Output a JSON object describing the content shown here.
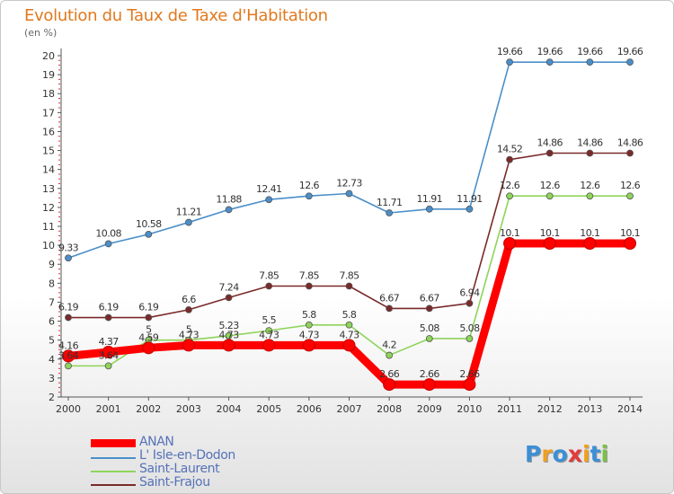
{
  "header": {
    "title": "Evolution du Taux de Taxe d'Habitation",
    "unit": "(en %)"
  },
  "chart_data": {
    "type": "line",
    "title": "Evolution du Taux de Taxe d'Habitation",
    "ylabel": "(en %)",
    "xlabel": "",
    "x": [
      "2000",
      "2001",
      "2002",
      "2003",
      "2004",
      "2005",
      "2006",
      "2007",
      "2008",
      "2009",
      "2010",
      "2011",
      "2012",
      "2013",
      "2014"
    ],
    "ylim": [
      2,
      20
    ],
    "yticks": [
      "2",
      "3",
      "4",
      "5",
      "6",
      "7",
      "8",
      "9",
      "10",
      "11",
      "12",
      "13",
      "14",
      "15",
      "16",
      "17",
      "18",
      "19",
      "20"
    ],
    "grid": false,
    "legend_position": "bottom-left",
    "series": [
      {
        "name": "ANAN",
        "color": "#ff0000",
        "values": [
          4.16,
          4.37,
          4.59,
          4.73,
          4.73,
          4.73,
          4.73,
          4.73,
          2.66,
          2.66,
          2.66,
          10.1,
          10.1,
          10.1,
          10.1
        ],
        "labels": [
          "4.16",
          "4.37",
          "4.59",
          "4.73",
          "4.73",
          "4.73",
          "4.73",
          "4.73",
          "2.66",
          "2.66",
          "2.66",
          "10.1",
          "10.1",
          "10.1",
          "10.1"
        ]
      },
      {
        "name": "L' Isle-en-Dodon",
        "color": "#4a8fc9",
        "values": [
          9.33,
          10.08,
          10.58,
          11.21,
          11.88,
          12.41,
          12.6,
          12.73,
          11.71,
          11.91,
          11.91,
          19.66,
          19.66,
          19.66,
          19.66
        ],
        "labels": [
          "9.33",
          "10.08",
          "10.58",
          "11.21",
          "11.88",
          "12.41",
          "12.6",
          "12.73",
          "11.71",
          "11.91",
          "11.91",
          "19.66",
          "19.66",
          "19.66",
          "19.66"
        ]
      },
      {
        "name": "Saint-Laurent",
        "color": "#8ed45a",
        "values": [
          3.64,
          3.64,
          5,
          5,
          5.23,
          5.5,
          5.8,
          5.8,
          4.2,
          5.08,
          5.08,
          12.6,
          12.6,
          12.6,
          12.6
        ],
        "labels": [
          "3.64",
          "3.64",
          "5",
          "5",
          "5.23",
          "5.5",
          "5.8",
          "5.8",
          "4.2",
          "5.08",
          "5.08",
          "12.6",
          "12.6",
          "12.6",
          "12.6"
        ]
      },
      {
        "name": "Saint-Frajou",
        "color": "#7a2a2a",
        "values": [
          6.19,
          6.19,
          6.19,
          6.6,
          7.24,
          7.85,
          7.85,
          7.85,
          6.67,
          6.67,
          6.94,
          14.52,
          14.86,
          14.86,
          14.86
        ],
        "labels": [
          "6.19",
          "6.19",
          "6.19",
          "6.6",
          "7.24",
          "7.85",
          "7.85",
          "7.85",
          "6.67",
          "6.67",
          "6.94",
          "14.52",
          "14.86",
          "14.86",
          "14.86"
        ]
      }
    ]
  },
  "legend": {
    "items": [
      {
        "label": "ANAN",
        "color": "#ff0000"
      },
      {
        "label": "L' Isle-en-Dodon",
        "color": "#4a8fc9"
      },
      {
        "label": "Saint-Laurent",
        "color": "#8ed45a"
      },
      {
        "label": "Saint-Frajou",
        "color": "#7a2a2a"
      }
    ]
  },
  "logo": {
    "letters": [
      "P",
      "r",
      "o",
      "x",
      "i",
      "t",
      "i"
    ],
    "colors": [
      "#3b8fd6",
      "#f0a020",
      "#3b8fd6",
      "#e23b3b",
      "#f0a020",
      "#3b8fd6",
      "#7bc143"
    ]
  }
}
